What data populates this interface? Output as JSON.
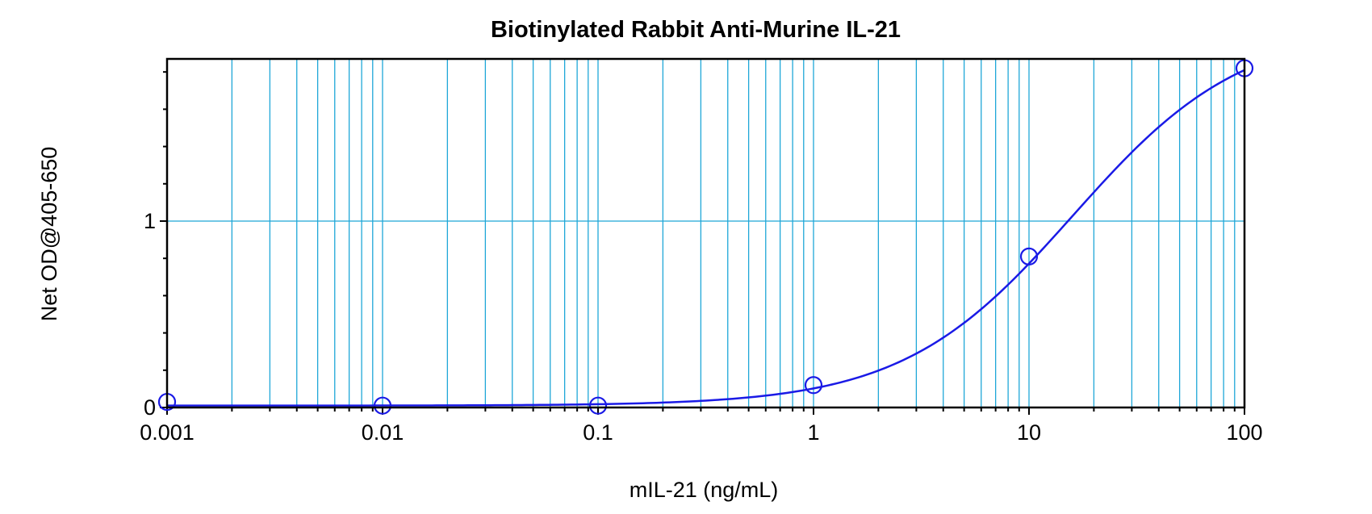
{
  "chart_data": {
    "type": "scatter",
    "title": "Biotinylated Rabbit Anti-Murine IL-21",
    "xlabel": "mIL-21 (ng/mL)",
    "ylabel": "Net OD@405-650",
    "x_scale": "log",
    "xlim": [
      0.001,
      100
    ],
    "ylim": [
      0,
      1.87
    ],
    "x_tick_labels": [
      "0.001",
      "0.01",
      "0.1",
      "1",
      "10",
      "100"
    ],
    "y_tick_labels": [
      "0",
      "1"
    ],
    "grid": true,
    "series": [
      {
        "x": [
          0.001,
          0.01,
          0.1,
          1,
          10,
          100
        ],
        "y": [
          0.03,
          0.01,
          0.01,
          0.12,
          0.81,
          1.82
        ],
        "color": "#1a1ae6"
      }
    ]
  }
}
